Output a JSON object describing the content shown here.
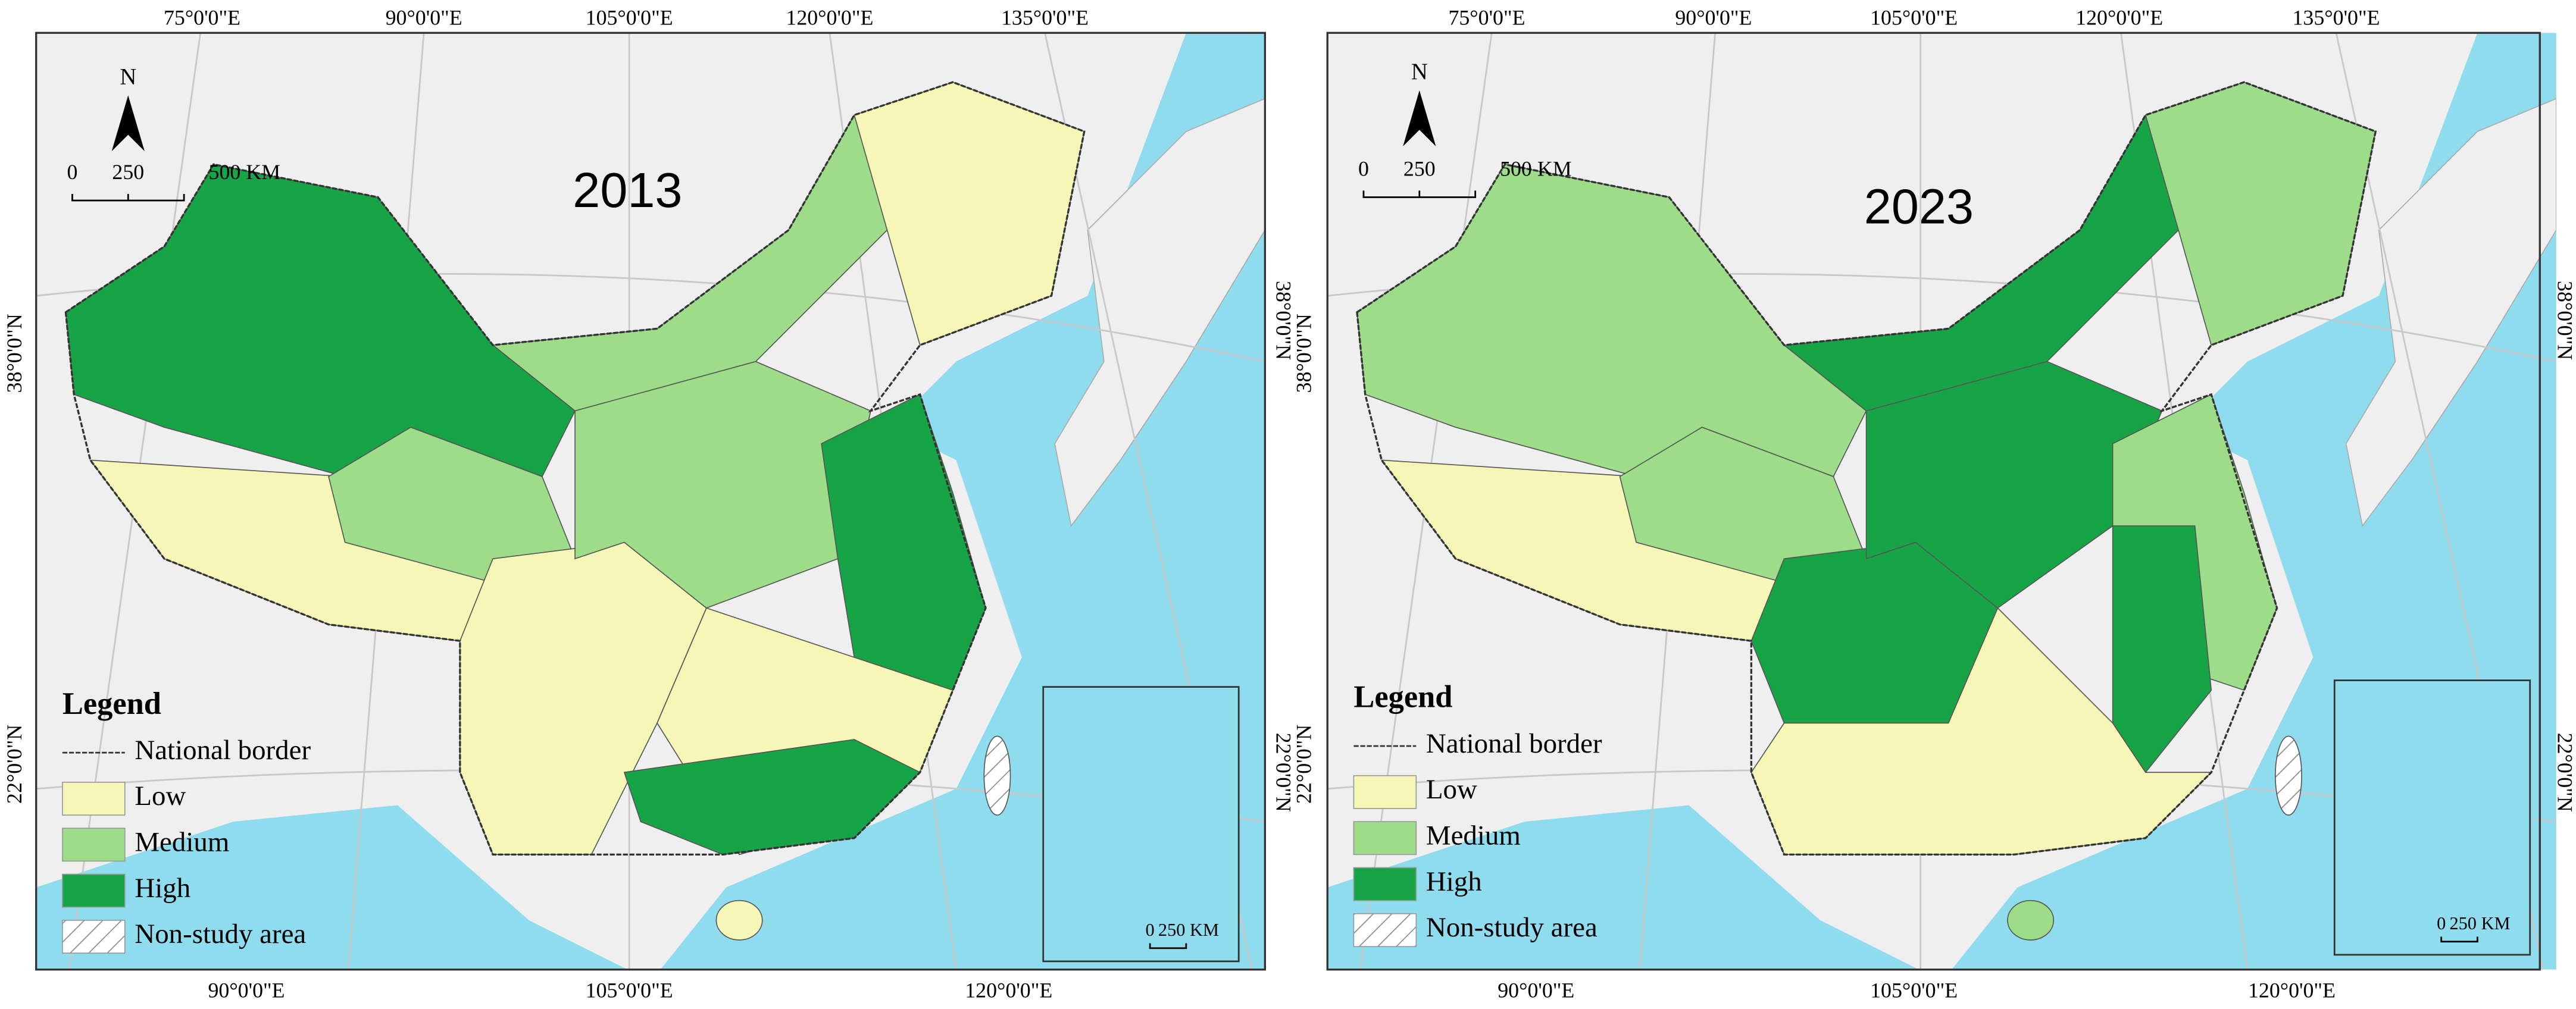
{
  "maps": [
    {
      "title": "2013",
      "lon_labels_top": [
        "75°0'0\"E",
        "90°0'0\"E",
        "105°0'0\"E",
        "120°0'0\"E",
        "135°0'0\"E"
      ],
      "lon_labels_bottom": [
        "90°0'0\"E",
        "105°0'0\"E",
        "120°0'0\"E"
      ],
      "lat_labels_left": [
        "38°0'0\"N",
        "22°0'0\"N"
      ],
      "lat_labels_right": [
        "38°0'0\"N",
        "22°0'0\"N"
      ],
      "north": "N",
      "scale_labels": [
        "0",
        "250",
        "500 KM"
      ],
      "inset_scale_labels": [
        "0",
        "250 KM"
      ],
      "legend": {
        "title": "Legend",
        "items": [
          "National border",
          "Low",
          "Medium",
          "High",
          "Non-study area"
        ]
      }
    },
    {
      "title": "2023",
      "lon_labels_top": [
        "75°0'0\"E",
        "90°0'0\"E",
        "105°0'0\"E",
        "120°0'0\"E",
        "135°0'0\"E"
      ],
      "lon_labels_bottom": [
        "90°0'0\"E",
        "105°0'0\"E",
        "120°0'0\"E"
      ],
      "lat_labels_left": [
        "38°0'0\"N",
        "22°0'0\"N"
      ],
      "lat_labels_right": [
        "38°0'0\"N",
        "22°0'0\"N"
      ],
      "north": "N",
      "scale_labels": [
        "0",
        "250",
        "500 KM"
      ],
      "inset_scale_labels": [
        "0",
        "250 KM"
      ],
      "legend": {
        "title": "Legend",
        "items": [
          "National border",
          "Low",
          "Medium",
          "High",
          "Non-study area"
        ]
      }
    }
  ]
}
